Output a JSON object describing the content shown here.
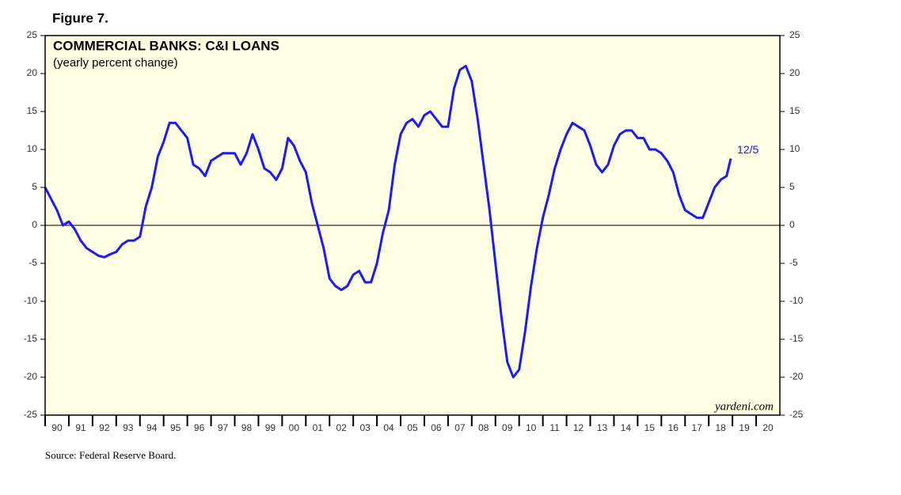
{
  "figure_label": "Figure 7.",
  "source": "Source: Federal Reserve Board.",
  "chart_data": {
    "type": "line",
    "title": "COMMERCIAL BANKS: C&I LOANS",
    "subtitle": "(yearly percent change)",
    "watermark": "yardeni.com",
    "annotation": "12/5",
    "xlim": [
      1990,
      2021
    ],
    "xticks": [
      {
        "value": 1990,
        "label": "90"
      },
      {
        "value": 1991,
        "label": "91"
      },
      {
        "value": 1992,
        "label": "92"
      },
      {
        "value": 1993,
        "label": "93"
      },
      {
        "value": 1994,
        "label": "94"
      },
      {
        "value": 1995,
        "label": "95"
      },
      {
        "value": 1996,
        "label": "96"
      },
      {
        "value": 1997,
        "label": "97"
      },
      {
        "value": 1998,
        "label": "98"
      },
      {
        "value": 1999,
        "label": "99"
      },
      {
        "value": 2000,
        "label": "00"
      },
      {
        "value": 2001,
        "label": "01"
      },
      {
        "value": 2002,
        "label": "02"
      },
      {
        "value": 2003,
        "label": "03"
      },
      {
        "value": 2004,
        "label": "04"
      },
      {
        "value": 2005,
        "label": "05"
      },
      {
        "value": 2006,
        "label": "06"
      },
      {
        "value": 2007,
        "label": "07"
      },
      {
        "value": 2008,
        "label": "08"
      },
      {
        "value": 2009,
        "label": "09"
      },
      {
        "value": 2010,
        "label": "10"
      },
      {
        "value": 2011,
        "label": "11"
      },
      {
        "value": 2012,
        "label": "12"
      },
      {
        "value": 2013,
        "label": "13"
      },
      {
        "value": 2014,
        "label": "14"
      },
      {
        "value": 2015,
        "label": "15"
      },
      {
        "value": 2016,
        "label": "16"
      },
      {
        "value": 2017,
        "label": "17"
      },
      {
        "value": 2018,
        "label": "18"
      },
      {
        "value": 2019,
        "label": "19"
      },
      {
        "value": 2020,
        "label": "20"
      }
    ],
    "ylim": [
      -25,
      25
    ],
    "yticks": [
      -25,
      -20,
      -15,
      -10,
      -5,
      0,
      5,
      10,
      15,
      20,
      25
    ],
    "y2lim": [
      -25,
      25
    ],
    "y2ticks": [
      -25,
      -20,
      -15,
      -10,
      -5,
      0,
      5,
      10,
      15,
      20,
      25
    ],
    "zero_line": true,
    "background": "#fefee2",
    "x": [
      1990,
      1990.25,
      1990.5,
      1990.75,
      1991,
      1991.25,
      1991.5,
      1991.75,
      1992,
      1992.25,
      1992.5,
      1992.75,
      1993,
      1993.25,
      1993.5,
      1993.75,
      1994,
      1994.25,
      1994.5,
      1994.75,
      1995,
      1995.25,
      1995.5,
      1995.75,
      1996,
      1996.25,
      1996.5,
      1996.75,
      1997,
      1997.25,
      1997.5,
      1997.75,
      1998,
      1998.25,
      1998.5,
      1998.75,
      1999,
      1999.25,
      1999.5,
      1999.75,
      2000,
      2000.25,
      2000.5,
      2000.75,
      2001,
      2001.25,
      2001.5,
      2001.75,
      2002,
      2002.25,
      2002.5,
      2002.75,
      2003,
      2003.25,
      2003.5,
      2003.75,
      2004,
      2004.25,
      2004.5,
      2004.75,
      2005,
      2005.25,
      2005.5,
      2005.75,
      2006,
      2006.25,
      2006.5,
      2006.75,
      2007,
      2007.25,
      2007.5,
      2007.75,
      2008,
      2008.25,
      2008.5,
      2008.75,
      2009,
      2009.25,
      2009.5,
      2009.75,
      2010,
      2010.25,
      2010.5,
      2010.75,
      2011,
      2011.25,
      2011.5,
      2011.75,
      2012,
      2012.25,
      2012.5,
      2012.75,
      2013,
      2013.25,
      2013.5,
      2013.75,
      2014,
      2014.25,
      2014.5,
      2014.75,
      2015,
      2015.25,
      2015.5,
      2015.75,
      2016,
      2016.25,
      2016.5,
      2016.75,
      2017,
      2017.25,
      2017.5,
      2017.75,
      2018,
      2018.25,
      2018.5,
      2018.75,
      2018.93
    ],
    "series": [
      {
        "name": "C&I loans",
        "color": "#1a1aff",
        "values": [
          5,
          3.5,
          2,
          0,
          0.5,
          -0.5,
          -2,
          -3,
          -3.5,
          -4,
          -4.2,
          -3.8,
          -3.5,
          -2.5,
          -2,
          -2,
          -1.5,
          2.5,
          5,
          9,
          11,
          13.5,
          13.5,
          12.5,
          11.5,
          8,
          7.5,
          6.5,
          8.5,
          9,
          9.5,
          9.5,
          9.5,
          8,
          9.5,
          12,
          10,
          7.5,
          7,
          6,
          7.5,
          11.5,
          10.5,
          8.5,
          7,
          3,
          0,
          -3,
          -7,
          -8,
          -8.5,
          -8,
          -6.5,
          -6,
          -7.5,
          -7.5,
          -5,
          -1,
          2,
          8,
          12,
          13.5,
          14,
          13,
          14.5,
          15,
          14,
          13,
          13,
          18,
          20.5,
          21,
          19,
          14,
          8,
          2,
          -5,
          -12,
          -18,
          -20,
          -19,
          -14,
          -8,
          -3,
          1,
          4,
          7.5,
          10,
          12,
          13.5,
          13,
          12.5,
          10.5,
          8,
          7,
          8,
          10.5,
          12,
          12.5,
          12.5,
          11.5,
          11.5,
          10,
          10,
          9.5,
          8.5,
          7,
          4,
          2,
          1.5,
          1,
          1,
          3,
          5,
          6,
          6.5,
          8.8
        ]
      }
    ]
  }
}
